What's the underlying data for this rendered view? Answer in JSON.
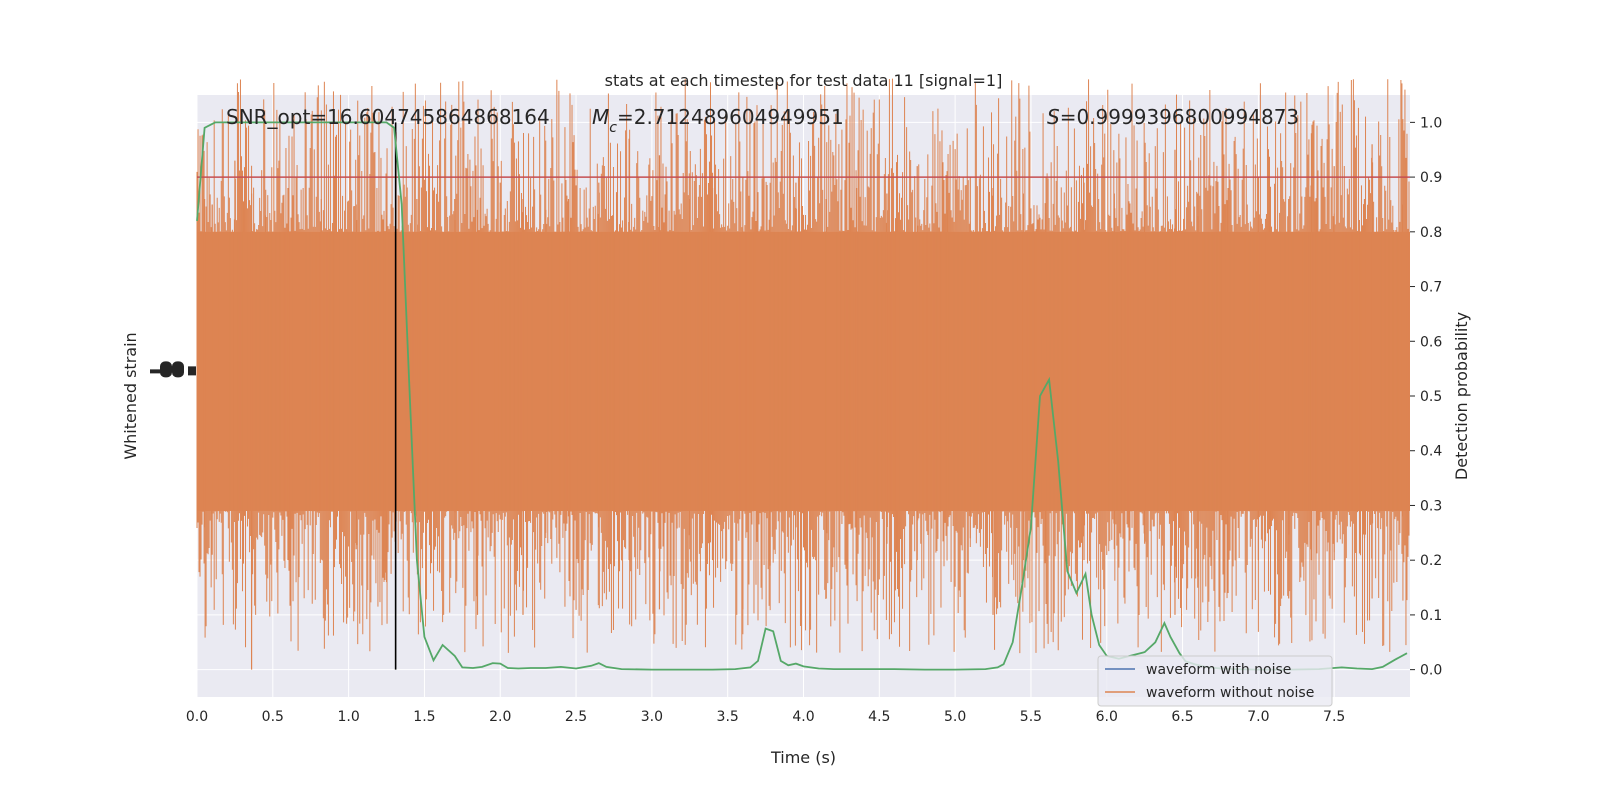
{
  "chart_data": {
    "type": "line",
    "title": "stats at each timestep for test data 11 [signal=1]",
    "xlabel": "Time (s)",
    "ylabel_left": "Whitened strain",
    "ylabel_right": "Detection probability",
    "xlim": [
      0,
      8.0
    ],
    "ylim_right": [
      -0.05,
      1.05
    ],
    "x_ticks": [
      "0.0",
      "0.5",
      "1.0",
      "1.5",
      "2.0",
      "2.5",
      "3.0",
      "3.5",
      "4.0",
      "4.5",
      "5.0",
      "5.5",
      "6.0",
      "6.5",
      "7.0",
      "7.5"
    ],
    "x_tick_values": [
      0,
      0.5,
      1,
      1.5,
      2,
      2.5,
      3,
      3.5,
      4,
      4.5,
      5,
      5.5,
      6,
      6.5,
      7,
      7.5
    ],
    "y_right_ticks": [
      "0.0",
      "0.1",
      "0.2",
      "0.3",
      "0.4",
      "0.5",
      "0.6",
      "0.7",
      "0.8",
      "0.9",
      "1.0"
    ],
    "y_right_tick_values": [
      0,
      0.1,
      0.2,
      0.3,
      0.4,
      0.5,
      0.6,
      0.7,
      0.8,
      0.9,
      1.0
    ],
    "annotations": {
      "snr": "SNR_opt=16.604745864868164",
      "mc_symbol": "M",
      "mc_sub": "c",
      "mc_value": "=2.712489604949951",
      "s_symbol": "S",
      "s_value": "=0.9999396800994873"
    },
    "threshold": 0.9,
    "marker_time": 1.31,
    "grid": true,
    "legend_position": "bottom-right",
    "series": [
      {
        "name": "waveform with noise",
        "color": "#4c72b0"
      },
      {
        "name": "waveform without noise",
        "color": "#dd8452"
      }
    ],
    "noise_band": {
      "color": "#dd8452",
      "center": 0.545,
      "dense_half_width": 0.255,
      "spikes": [
        [
          0.05,
          0.86,
          0.26
        ],
        [
          0.1,
          0.85,
          0.21
        ],
        [
          0.25,
          0.93,
          0.3
        ],
        [
          0.36,
          0.87,
          0.0
        ],
        [
          0.45,
          0.83,
          0.3
        ],
        [
          0.6,
          0.88,
          0.2
        ],
        [
          0.82,
          0.86,
          0.3
        ],
        [
          1.05,
          0.85,
          0.22
        ],
        [
          1.25,
          0.83,
          0.16
        ],
        [
          1.45,
          0.86,
          0.28
        ],
        [
          1.7,
          0.86,
          0.25
        ],
        [
          1.85,
          0.84,
          0.1
        ],
        [
          2.0,
          0.89,
          0.3
        ],
        [
          2.15,
          0.86,
          0.1
        ],
        [
          2.3,
          0.84,
          0.25
        ],
        [
          2.45,
          0.86,
          0.28
        ],
        [
          2.65,
          0.89,
          0.26
        ],
        [
          2.85,
          0.97,
          0.2
        ],
        [
          3.05,
          0.94,
          0.11
        ],
        [
          3.25,
          0.86,
          0.22
        ],
        [
          3.4,
          0.88,
          0.2
        ],
        [
          3.6,
          0.9,
          0.11
        ],
        [
          3.78,
          0.84,
          0.19
        ],
        [
          3.95,
          0.89,
          0.26
        ],
        [
          4.15,
          0.86,
          0.13
        ],
        [
          4.35,
          0.88,
          0.25
        ],
        [
          4.55,
          0.87,
          0.23
        ],
        [
          4.75,
          0.92,
          0.2
        ],
        [
          4.95,
          0.84,
          0.29
        ],
        [
          5.1,
          0.9,
          0.24
        ],
        [
          5.25,
          0.88,
          0.1
        ],
        [
          5.45,
          0.87,
          0.2
        ],
        [
          5.6,
          0.9,
          0.12
        ],
        [
          5.85,
          0.89,
          0.2
        ],
        [
          6.05,
          0.87,
          0.22
        ],
        [
          6.25,
          0.9,
          0.23
        ],
        [
          6.45,
          0.95,
          0.1
        ],
        [
          6.6,
          0.87,
          0.17
        ],
        [
          6.8,
          0.88,
          0.14
        ],
        [
          7.0,
          0.9,
          0.2
        ],
        [
          7.2,
          0.86,
          0.13
        ],
        [
          7.35,
          0.98,
          0.2
        ],
        [
          7.5,
          0.92,
          0.2
        ],
        [
          7.7,
          0.86,
          0.24
        ],
        [
          7.75,
          0.96,
          0.13
        ],
        [
          7.95,
          0.85,
          0.28
        ]
      ]
    },
    "detection_probability": {
      "name": "detection probability",
      "color": "#55a868",
      "x": [
        0.0,
        0.05,
        0.12,
        0.2,
        0.3,
        0.5,
        0.7,
        0.9,
        1.1,
        1.25,
        1.3,
        1.35,
        1.4,
        1.45,
        1.5,
        1.56,
        1.62,
        1.7,
        1.75,
        1.82,
        1.88,
        1.95,
        2.0,
        2.05,
        2.12,
        2.2,
        2.3,
        2.4,
        2.5,
        2.6,
        2.65,
        2.7,
        2.8,
        3.0,
        3.2,
        3.4,
        3.55,
        3.65,
        3.7,
        3.75,
        3.8,
        3.85,
        3.9,
        3.95,
        4.0,
        4.1,
        4.2,
        4.4,
        4.6,
        4.8,
        5.0,
        5.2,
        5.28,
        5.32,
        5.38,
        5.44,
        5.5,
        5.56,
        5.62,
        5.68,
        5.74,
        5.8,
        5.86,
        5.9,
        5.95,
        6.0,
        6.08,
        6.15,
        6.25,
        6.32,
        6.38,
        6.42,
        6.48,
        6.52,
        6.58,
        6.65,
        6.75,
        6.85,
        7.0,
        7.2,
        7.4,
        7.55,
        7.65,
        7.75,
        7.82,
        7.9,
        7.98
      ],
      "y": [
        0.82,
        0.99,
        1.0,
        1.0,
        1.0,
        1.0,
        1.0,
        1.0,
        1.0,
        1.0,
        0.99,
        0.85,
        0.52,
        0.2,
        0.06,
        0.017,
        0.045,
        0.025,
        0.004,
        0.003,
        0.005,
        0.012,
        0.011,
        0.003,
        0.002,
        0.003,
        0.003,
        0.005,
        0.002,
        0.007,
        0.012,
        0.005,
        0.001,
        0.0,
        0.0,
        0.0,
        0.001,
        0.004,
        0.016,
        0.075,
        0.07,
        0.016,
        0.008,
        0.011,
        0.006,
        0.002,
        0.001,
        0.001,
        0.001,
        0.0,
        0.0,
        0.001,
        0.004,
        0.01,
        0.05,
        0.15,
        0.26,
        0.5,
        0.53,
        0.38,
        0.18,
        0.14,
        0.175,
        0.1,
        0.045,
        0.025,
        0.02,
        0.025,
        0.032,
        0.05,
        0.085,
        0.06,
        0.03,
        0.015,
        0.01,
        0.005,
        0.002,
        0.001,
        0.0,
        0.0,
        0.001,
        0.004,
        0.002,
        0.001,
        0.005,
        0.018,
        0.03
      ]
    }
  }
}
